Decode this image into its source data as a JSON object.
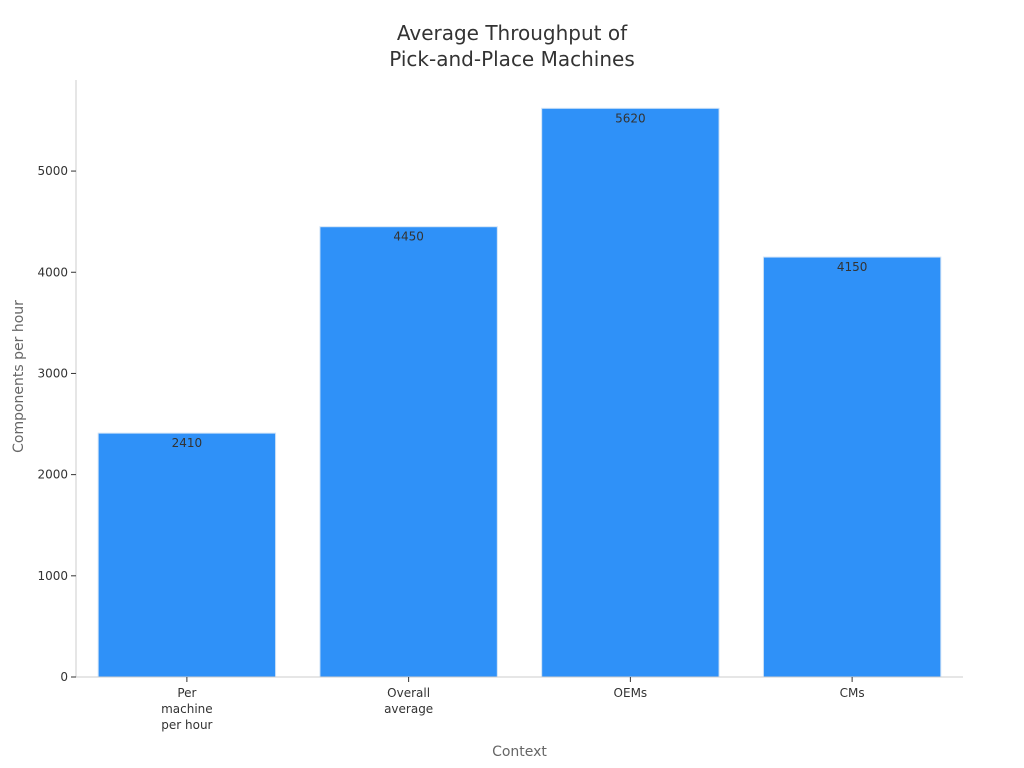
{
  "chart_data": {
    "type": "bar",
    "title_lines": [
      "Average Throughput of",
      "Pick-and-Place Machines"
    ],
    "xlabel": "Context",
    "ylabel": "Components per hour",
    "categories": [
      [
        "Per",
        "machine",
        "per hour"
      ],
      [
        "Overall",
        "average"
      ],
      [
        "OEMs"
      ],
      [
        "CMs"
      ]
    ],
    "values": [
      2410,
      4450,
      5620,
      4150
    ],
    "data_labels": [
      "2410",
      "4450",
      "5620",
      "4150"
    ],
    "ylim": [
      0,
      5900
    ],
    "yticks": [
      0,
      1000,
      2000,
      3000,
      4000,
      5000
    ],
    "ytick_labels": [
      "0",
      "1000",
      "2000",
      "3000",
      "4000",
      "5000"
    ],
    "grid": false,
    "bar_color": "#2f91f8",
    "bar_edge_color": "#d0e3f7"
  }
}
